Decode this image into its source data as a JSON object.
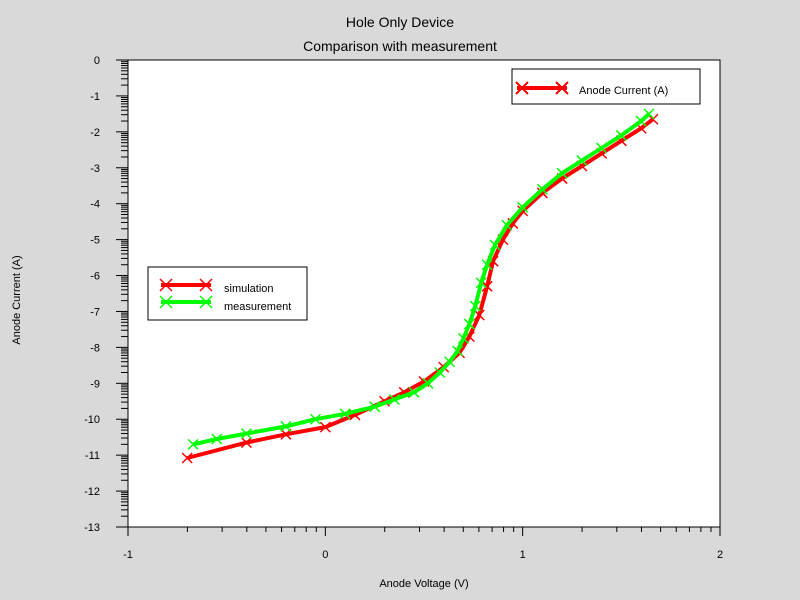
{
  "chart_data": {
    "type": "line",
    "title": "Hole Only Device",
    "subtitle": "Comparison with measurement",
    "xlabel": "Anode Voltage (V)",
    "ylabel": "Anode Current (A)",
    "xlim": [
      -1,
      2
    ],
    "ylim": [
      -13,
      0
    ],
    "x_ticks": [
      -1,
      0,
      1,
      2
    ],
    "y_ticks": [
      0,
      -1,
      -2,
      -3,
      -4,
      -5,
      -6,
      -7,
      -8,
      -9,
      -10,
      -11,
      -12,
      -13
    ],
    "x_tick_labels": [
      "-1",
      "0",
      "1",
      "2"
    ],
    "y_tick_labels": [
      "0",
      "-1",
      "-2",
      "-3",
      "-4",
      "-5",
      "-6",
      "-7",
      "-8",
      "-9",
      "-10",
      "-11",
      "-12",
      "-13"
    ],
    "legend_top": {
      "label": "Anode Current (A)",
      "placement": "top-right",
      "color": "#ff0000"
    },
    "legend_left": {
      "placement": "middle-left"
    },
    "series": [
      {
        "name": "simulation",
        "color": "#ff0000",
        "points": [
          [
            -0.7,
            -11.08
          ],
          [
            -0.4,
            -10.65
          ],
          [
            -0.2,
            -10.42
          ],
          [
            0.0,
            -10.22
          ],
          [
            0.15,
            -9.88
          ],
          [
            0.3,
            -9.5
          ],
          [
            0.4,
            -9.25
          ],
          [
            0.5,
            -8.95
          ],
          [
            0.6,
            -8.55
          ],
          [
            0.68,
            -8.15
          ],
          [
            0.73,
            -7.7
          ],
          [
            0.78,
            -7.1
          ],
          [
            0.82,
            -6.3
          ],
          [
            0.85,
            -5.6
          ],
          [
            0.9,
            -5.0
          ],
          [
            0.95,
            -4.55
          ],
          [
            1.0,
            -4.2
          ],
          [
            1.1,
            -3.7
          ],
          [
            1.2,
            -3.3
          ],
          [
            1.3,
            -2.95
          ],
          [
            1.4,
            -2.6
          ],
          [
            1.5,
            -2.25
          ],
          [
            1.6,
            -1.9
          ],
          [
            1.66,
            -1.65
          ]
        ]
      },
      {
        "name": "measurement",
        "color": "#00ff00",
        "points": [
          [
            -0.67,
            -10.7
          ],
          [
            -0.55,
            -10.55
          ],
          [
            -0.4,
            -10.4
          ],
          [
            -0.2,
            -10.2
          ],
          [
            -0.05,
            -10.0
          ],
          [
            0.1,
            -9.85
          ],
          [
            0.25,
            -9.65
          ],
          [
            0.35,
            -9.45
          ],
          [
            0.45,
            -9.25
          ],
          [
            0.52,
            -9.0
          ],
          [
            0.58,
            -8.7
          ],
          [
            0.63,
            -8.4
          ],
          [
            0.67,
            -8.1
          ],
          [
            0.7,
            -7.75
          ],
          [
            0.73,
            -7.35
          ],
          [
            0.76,
            -6.85
          ],
          [
            0.79,
            -6.2
          ],
          [
            0.82,
            -5.7
          ],
          [
            0.86,
            -5.15
          ],
          [
            0.92,
            -4.6
          ],
          [
            1.0,
            -4.1
          ],
          [
            1.1,
            -3.6
          ],
          [
            1.2,
            -3.15
          ],
          [
            1.3,
            -2.8
          ],
          [
            1.4,
            -2.45
          ],
          [
            1.5,
            -2.1
          ],
          [
            1.6,
            -1.7
          ],
          [
            1.64,
            -1.5
          ]
        ]
      }
    ]
  }
}
